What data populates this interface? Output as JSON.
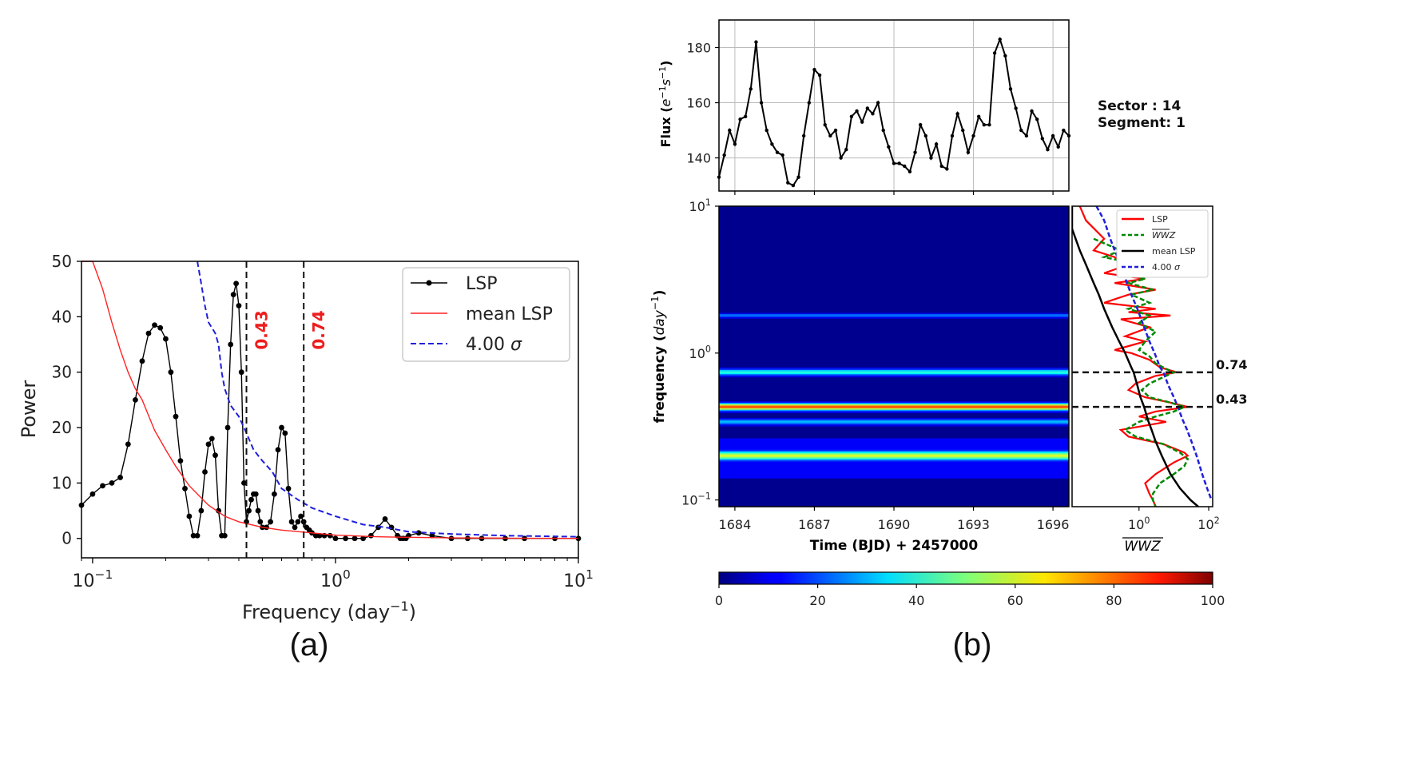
{
  "chart_data": [
    {
      "type": "line",
      "panel_caption": "(a)",
      "xlabel": "Frequency (day",
      "xlabel_sup": "−1",
      "xlabel_end": ")",
      "ylabel": "Power",
      "xscale": "log",
      "xlim": [
        0.09,
        10
      ],
      "ylim": [
        -3.5,
        50
      ],
      "xticks": [
        {
          "v": 0.1,
          "base": "10",
          "exp": "−1"
        },
        {
          "v": 1,
          "base": "10",
          "exp": "0"
        },
        {
          "v": 10,
          "base": "10",
          "exp": "1"
        }
      ],
      "yticks": [
        0,
        10,
        20,
        30,
        40,
        50
      ],
      "legend": {
        "position": "top-right",
        "items": [
          {
            "label": "LSP",
            "symbol": "lsp"
          },
          {
            "label": "mean LSP",
            "symbol": "mean"
          },
          {
            "label": "4.00 ",
            "greek": "σ",
            "symbol": "sig"
          }
        ]
      },
      "vlines": [
        {
          "x": 0.43,
          "label": "0.43"
        },
        {
          "x": 0.74,
          "label": "0.74"
        }
      ],
      "series": [
        {
          "name": "LSP",
          "color": "#000000",
          "x": [
            0.09,
            0.1,
            0.11,
            0.12,
            0.13,
            0.14,
            0.15,
            0.16,
            0.17,
            0.18,
            0.19,
            0.2,
            0.21,
            0.22,
            0.23,
            0.24,
            0.25,
            0.26,
            0.27,
            0.28,
            0.29,
            0.3,
            0.31,
            0.32,
            0.33,
            0.34,
            0.35,
            0.36,
            0.37,
            0.38,
            0.39,
            0.4,
            0.41,
            0.42,
            0.43,
            0.44,
            0.45,
            0.46,
            0.47,
            0.48,
            0.49,
            0.5,
            0.52,
            0.54,
            0.56,
            0.58,
            0.6,
            0.62,
            0.64,
            0.66,
            0.68,
            0.7,
            0.72,
            0.74,
            0.76,
            0.78,
            0.8,
            0.83,
            0.86,
            0.9,
            0.95,
            1.0,
            1.1,
            1.2,
            1.3,
            1.4,
            1.5,
            1.6,
            1.7,
            1.8,
            1.85,
            1.9,
            1.95,
            2.0,
            2.2,
            2.5,
            3.0,
            3.5,
            4.0,
            5.0,
            6.0,
            8.0,
            10.0
          ],
          "y": [
            6,
            8,
            9.5,
            10,
            11,
            17,
            25,
            32,
            37,
            38.5,
            38,
            36,
            30,
            22,
            14,
            9,
            4,
            0.5,
            0.5,
            5,
            12,
            17,
            18,
            15,
            5,
            0.5,
            0.5,
            20,
            35,
            44,
            46,
            42,
            30,
            10,
            3,
            5,
            7,
            8,
            8,
            5,
            3,
            2,
            2,
            3,
            8,
            16,
            20,
            19,
            9,
            3,
            2,
            3,
            4,
            3,
            2,
            1.5,
            1,
            0.5,
            0.5,
            0.5,
            0.5,
            0,
            0,
            0,
            0,
            0.5,
            2,
            3.5,
            2,
            0.5,
            0,
            0,
            0,
            0.5,
            1,
            0.5,
            0,
            0,
            0,
            0,
            0,
            0,
            0
          ]
        },
        {
          "name": "mean LSP",
          "color": "#ff2222",
          "x": [
            0.09,
            0.1,
            0.11,
            0.12,
            0.13,
            0.14,
            0.15,
            0.16,
            0.18,
            0.2,
            0.22,
            0.25,
            0.3,
            0.35,
            0.4,
            0.5,
            0.6,
            0.8,
            1.0,
            1.5,
            2.0,
            3.0,
            5.0,
            10.0
          ],
          "y": [
            58,
            52,
            45,
            39,
            34,
            30,
            27,
            25,
            19.5,
            16,
            13,
            9.5,
            6,
            4,
            3,
            2,
            1.5,
            1,
            0.6,
            0.3,
            0.2,
            0.1,
            0.05,
            0
          ]
        },
        {
          "name": "4.00 σ",
          "color": "#1f1fdd",
          "x": [
            0.27,
            0.28,
            0.29,
            0.3,
            0.31,
            0.32,
            0.33,
            0.34,
            0.35,
            0.37,
            0.4,
            0.43,
            0.46,
            0.5,
            0.55,
            0.6,
            0.7,
            0.8,
            1.0,
            1.3,
            1.6,
            2.0,
            3.0,
            5.0,
            10.0
          ],
          "y": [
            52,
            46,
            42,
            39,
            38,
            37,
            35,
            30,
            27,
            24,
            22,
            19,
            16,
            14,
            12,
            9,
            7,
            5.5,
            4,
            2.5,
            2,
            1.2,
            0.8,
            0.5,
            0.3
          ]
        }
      ]
    },
    {
      "type": "line",
      "panel_caption": "(b)",
      "ylabel": "Flux (",
      "ylabel_var": "e",
      "ylabel_sup1": "−1",
      "ylabel_var2": "s",
      "ylabel_sup2": "−1",
      "ylabel_end": ")",
      "xlim": [
        1683.4,
        1696.6
      ],
      "ylim": [
        128,
        190
      ],
      "yticks": [
        140,
        160,
        180
      ],
      "sector_text": "Sector  : 14",
      "segment_text": "Segment: 1",
      "series": [
        {
          "name": "flux",
          "color": "#000000",
          "x": [
            1683.4,
            1683.6,
            1683.8,
            1684.0,
            1684.2,
            1684.4,
            1684.6,
            1684.8,
            1685.0,
            1685.2,
            1685.4,
            1685.6,
            1685.8,
            1686.0,
            1686.2,
            1686.4,
            1686.6,
            1686.8,
            1687.0,
            1687.2,
            1687.4,
            1687.6,
            1687.8,
            1688.0,
            1688.2,
            1688.4,
            1688.6,
            1688.8,
            1689.0,
            1689.2,
            1689.4,
            1689.6,
            1689.8,
            1690.0,
            1690.2,
            1690.4,
            1690.6,
            1690.8,
            1691.0,
            1691.2,
            1691.4,
            1691.6,
            1691.8,
            1692.0,
            1692.2,
            1692.4,
            1692.6,
            1692.8,
            1693.0,
            1693.2,
            1693.4,
            1693.6,
            1693.8,
            1694.0,
            1694.2,
            1694.4,
            1694.6,
            1694.8,
            1695.0,
            1695.2,
            1695.4,
            1695.6,
            1695.8,
            1696.0,
            1696.2,
            1696.4,
            1696.6
          ],
          "y": [
            133,
            141,
            150,
            145,
            154,
            155,
            165,
            182,
            160,
            150,
            145,
            142,
            141,
            131,
            130,
            133,
            148,
            160,
            172,
            170,
            152,
            148,
            150,
            140,
            143,
            155,
            157,
            153,
            158,
            156,
            160,
            150,
            144,
            138,
            138,
            137,
            135,
            142,
            152,
            148,
            140,
            145,
            137,
            136,
            148,
            156,
            150,
            142,
            148,
            155,
            152,
            152,
            178,
            183,
            177,
            165,
            158,
            150,
            148,
            157,
            154,
            147,
            143,
            148,
            144,
            150,
            148
          ]
        }
      ]
    },
    {
      "type": "heatmap",
      "xlabel": "Time (BJD) + 2457000",
      "ylabel": "frequency (",
      "ylabel_var": "day",
      "ylabel_sup": "−1",
      "ylabel_end": ")",
      "xlim": [
        1683.4,
        1696.6
      ],
      "xticks": [
        1684,
        1687,
        1690,
        1693,
        1696
      ],
      "ylim": [
        0.09,
        10
      ],
      "yscale": "log",
      "yticks": [
        {
          "v": 0.1,
          "base": "10",
          "exp": "−1"
        },
        {
          "v": 1,
          "base": "10",
          "exp": "0"
        },
        {
          "v": 10,
          "base": "10",
          "exp": "1"
        }
      ],
      "bands": [
        {
          "freq": 1.8,
          "value": 22,
          "width": 0.012
        },
        {
          "freq": 0.74,
          "value": 38,
          "width": 0.02
        },
        {
          "freq": 0.43,
          "value": 78,
          "width": 0.022
        },
        {
          "freq": 0.34,
          "value": 28,
          "width": 0.018
        },
        {
          "freq": 0.2,
          "value": 55,
          "width": 0.03
        }
      ],
      "colorbar": {
        "min": 0,
        "max": 100,
        "ticks": [
          0,
          20,
          40,
          60,
          80,
          100
        ]
      }
    },
    {
      "type": "line",
      "xlabel": "WWZ",
      "xscale": "log",
      "xlim": [
        0.012,
        130
      ],
      "xticks": [
        {
          "v": 1,
          "base": "10",
          "exp": "0"
        },
        {
          "v": 100,
          "base": "10",
          "exp": "2"
        }
      ],
      "ylim": [
        0.09,
        10
      ],
      "yscale": "log",
      "hlines": [
        {
          "y": 0.74,
          "label": "0.74"
        },
        {
          "y": 0.43,
          "label": "0.43"
        }
      ],
      "legend": {
        "position": "top-right",
        "items": [
          {
            "label": "LSP",
            "symbol": "lsp"
          },
          {
            "label": "WWZ",
            "symbol": "wwz",
            "overline": true
          },
          {
            "label": "mean LSP",
            "symbol": "mean"
          },
          {
            "label": "4.00 ",
            "greek": "σ",
            "symbol": "sig"
          }
        ]
      },
      "series": [
        {
          "name": "LSP",
          "color": "#ff0000",
          "y": [
            10,
            8,
            6,
            5,
            4.5,
            4,
            3.5,
            3.2,
            3,
            2.7,
            2.5,
            2.2,
            2.0,
            1.9,
            1.8,
            1.7,
            1.5,
            1.3,
            1.2,
            1.05,
            1.0,
            0.9,
            0.8,
            0.74,
            0.7,
            0.62,
            0.56,
            0.5,
            0.46,
            0.43,
            0.4,
            0.37,
            0.34,
            0.3,
            0.27,
            0.24,
            0.21,
            0.2,
            0.18,
            0.15,
            0.13,
            0.11,
            0.1,
            0.09
          ],
          "x": [
            0.02,
            0.03,
            0.1,
            0.05,
            0.2,
            0.5,
            0.1,
            1.5,
            0.2,
            3,
            0.5,
            0.1,
            3,
            0.5,
            8,
            0.3,
            2,
            0.4,
            1.5,
            0.2,
            0.6,
            2,
            4,
            12,
            3,
            0.8,
            0.5,
            1.5,
            8,
            25,
            3,
            1,
            6,
            0.3,
            0.5,
            5,
            20,
            25,
            10,
            3,
            1.5,
            2,
            2.5,
            3
          ]
        },
        {
          "name": "WWZ",
          "color": "#008800",
          "y": [
            6,
            5,
            4.5,
            4,
            3.5,
            3.2,
            3,
            2.7,
            2.5,
            2.2,
            2.0,
            1.8,
            1.6,
            1.4,
            1.2,
            1.05,
            0.95,
            0.85,
            0.78,
            0.74,
            0.7,
            0.62,
            0.56,
            0.5,
            0.46,
            0.43,
            0.4,
            0.37,
            0.34,
            0.3,
            0.27,
            0.24,
            0.21,
            0.19,
            0.17,
            0.15,
            0.13,
            0.11,
            0.1,
            0.09
          ],
          "x": [
            0.05,
            0.3,
            0.1,
            1,
            0.4,
            1.5,
            0.5,
            2.5,
            0.6,
            2,
            0.5,
            2,
            1,
            3,
            1.5,
            1,
            2,
            3,
            6,
            10,
            6,
            2,
            1.2,
            2,
            8,
            20,
            10,
            3,
            1,
            0.4,
            0.8,
            5,
            15,
            25,
            20,
            10,
            4,
            2.5,
            2.5,
            3
          ]
        },
        {
          "name": "mean LSP",
          "color": "#000000",
          "y": [
            10,
            7,
            5,
            4,
            3,
            2.5,
            2,
            1.5,
            1.2,
            1.0,
            0.8,
            0.74,
            0.6,
            0.5,
            0.43,
            0.35,
            0.3,
            0.25,
            0.2,
            0.15,
            0.12,
            0.1,
            0.09
          ],
          "x": [
            0.008,
            0.012,
            0.02,
            0.03,
            0.05,
            0.07,
            0.1,
            0.17,
            0.27,
            0.4,
            0.6,
            0.7,
            0.9,
            1.1,
            1.4,
            1.8,
            2.3,
            3,
            4.5,
            8,
            15,
            30,
            50
          ]
        },
        {
          "name": "4.00 σ",
          "color": "#1f1fdd",
          "y": [
            10,
            8,
            6,
            5,
            4,
            3,
            2.5,
            2,
            1.5,
            1.2,
            1.0,
            0.8,
            0.74,
            0.6,
            0.5,
            0.43,
            0.35,
            0.3,
            0.25,
            0.2,
            0.15,
            0.12,
            0.1
          ],
          "x": [
            0.06,
            0.1,
            0.15,
            0.2,
            0.3,
            0.45,
            0.6,
            0.9,
            1.4,
            2,
            2.8,
            4,
            5,
            7,
            10,
            13,
            18,
            24,
            32,
            45,
            65,
            90,
            120
          ]
        }
      ]
    }
  ]
}
